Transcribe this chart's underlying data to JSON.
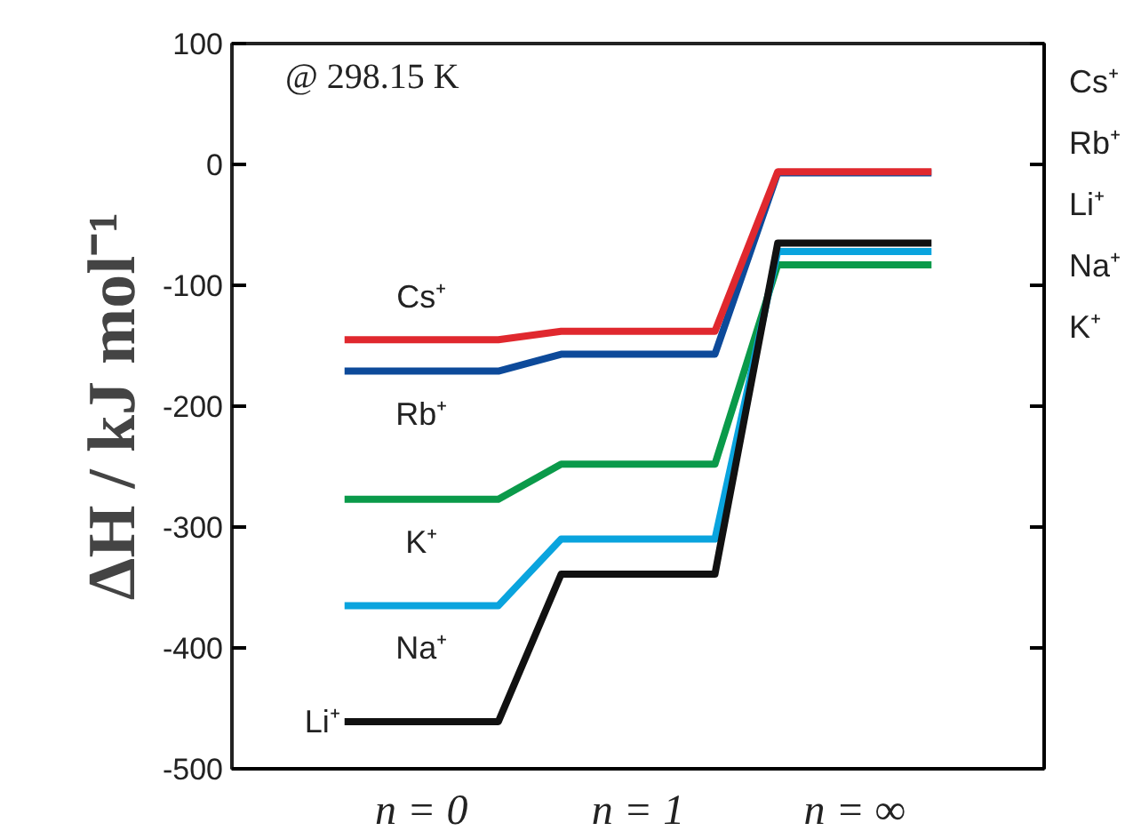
{
  "chart_data": {
    "type": "line",
    "ylabel": "ΔH / kJ mol⁻¹",
    "xlim": [
      -0.875,
      2.875
    ],
    "xticks": [
      {
        "value": 0,
        "label": "n = 0"
      },
      {
        "value": 1,
        "label": "n = 1"
      },
      {
        "value": 2,
        "label": "n = ∞"
      }
    ],
    "ylim": [
      -500,
      100
    ],
    "yticks": [
      100,
      0,
      -100,
      -200,
      -300,
      -400,
      -500
    ],
    "grid": false,
    "legend": "bottom left",
    "marker": "none",
    "line_style": "solid",
    "annotations": [
      "@ 298.15 K"
    ],
    "series": [
      {
        "name": "Rb⁺",
        "color": "#0d4a9a",
        "x": [
          -0.355,
          0.355,
          0.645,
          1.355,
          1.645,
          2.355
        ],
        "values": [
          -171,
          -171,
          -157,
          -157,
          -7,
          -7
        ]
      },
      {
        "name": "Cs⁺",
        "color": "#e0282e",
        "x": [
          -0.355,
          0.355,
          0.645,
          1.355,
          1.645,
          2.355
        ],
        "values": [
          -145,
          -145,
          -138,
          -138,
          -6,
          -6
        ]
      },
      {
        "name": "K⁺",
        "color": "#0a9a4a",
        "x": [
          -0.355,
          0.355,
          0.645,
          1.355,
          1.645,
          2.355
        ],
        "values": [
          -277,
          -277,
          -248,
          -248,
          -83,
          -83
        ]
      },
      {
        "name": "Na⁺",
        "color": "#0aa4de",
        "x": [
          -0.355,
          0.355,
          0.645,
          1.355,
          1.645,
          2.355
        ],
        "values": [
          -365,
          -365,
          -310,
          -310,
          -72,
          -72
        ]
      },
      {
        "name": "Li⁺",
        "color": "#111111",
        "x": [
          -0.355,
          0.355,
          0.645,
          1.355,
          1.645,
          2.355
        ],
        "values": [
          -461,
          -461,
          -339,
          -339,
          -65,
          -65
        ]
      }
    ]
  }
}
